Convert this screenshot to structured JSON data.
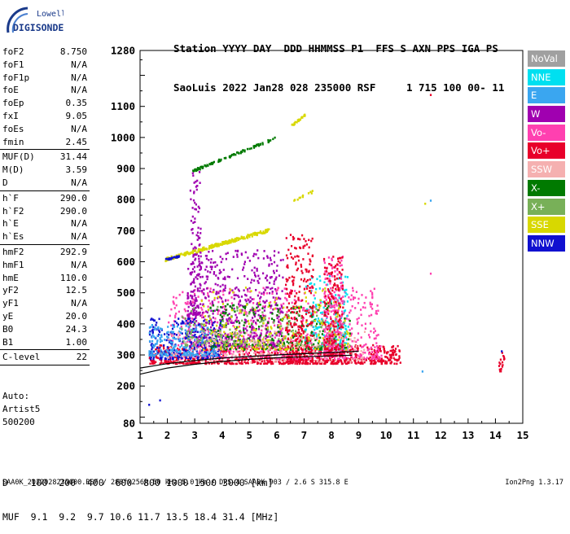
{
  "logo": {
    "line1": "Lowell",
    "line2": "DIGISONDE"
  },
  "header": {
    "line1": "Station YYYY DAY  DDD HHMMSS P1  FFS S AXN PPS IGA PS",
    "line2": "SaoLuis 2022 Jan28 028 235000 RSF     1 715 100 00- 11"
  },
  "params": [
    {
      "k": "foF2",
      "v": "8.750"
    },
    {
      "k": "foF1",
      "v": "N/A"
    },
    {
      "k": "foF1p",
      "v": "N/A"
    },
    {
      "k": "foE",
      "v": "N/A"
    },
    {
      "k": "foEp",
      "v": "0.35"
    },
    {
      "k": "fxI",
      "v": "9.05"
    },
    {
      "k": "foEs",
      "v": "N/A"
    },
    {
      "k": "fmin",
      "v": "2.45"
    },
    {
      "sep": true
    },
    {
      "k": "MUF(D)",
      "v": "31.44"
    },
    {
      "k": "M(D)",
      "v": "3.59"
    },
    {
      "k": "D",
      "v": "N/A"
    },
    {
      "sep": true
    },
    {
      "k": "h`F",
      "v": "290.0"
    },
    {
      "k": "h`F2",
      "v": "290.0"
    },
    {
      "k": "h`E",
      "v": "N/A"
    },
    {
      "k": "h`Es",
      "v": "N/A"
    },
    {
      "sep": true
    },
    {
      "k": "hmF2",
      "v": "292.9"
    },
    {
      "k": "hmF1",
      "v": "N/A"
    },
    {
      "k": "hmE",
      "v": "110.0"
    },
    {
      "k": "yF2",
      "v": "12.5"
    },
    {
      "k": "yF1",
      "v": "N/A"
    },
    {
      "k": "yE",
      "v": "20.0"
    },
    {
      "k": "B0",
      "v": "24.3"
    },
    {
      "k": "B1",
      "v": "1.00"
    },
    {
      "sep": true
    },
    {
      "k": "C-level",
      "v": "22"
    },
    {
      "sep": true
    }
  ],
  "auto": [
    "Auto:",
    "Artist5",
    "500200"
  ],
  "legend": [
    {
      "label": "NoVal",
      "color": "#a0a0a0"
    },
    {
      "label": "NNE",
      "color": "#00e0f0"
    },
    {
      "label": "E",
      "color": "#3aa6f0"
    },
    {
      "label": "W",
      "color": "#a000b0"
    },
    {
      "label": "Vo-",
      "color": "#ff40b0"
    },
    {
      "label": "Vo+",
      "color": "#e8002a"
    },
    {
      "label": "SSW",
      "color": "#f5b0b0"
    },
    {
      "label": "X-",
      "color": "#007a00"
    },
    {
      "label": "X+",
      "color": "#78b058"
    },
    {
      "label": "SSE",
      "color": "#d8d800"
    },
    {
      "label": "NNW",
      "color": "#1010d0"
    }
  ],
  "footer": {
    "d_line": "D    100  200  400  600  800 1000 1500 3000 [km]",
    "muf_line": "MUF  9.1  9.2  9.7 10.6 11.7 13.5 18.4 31.4 [MHz]",
    "file_line": "SAA0K_2022028235000.RSF / 280fx256h 50 kHz 5.0 km / DPS-4 SAA0K 903 / 2.6 S 315.8 E",
    "version": "Ion2Png 1.3.17"
  },
  "chart_data": {
    "type": "scatter",
    "xlim": [
      1,
      15
    ],
    "ylim": [
      80,
      1280
    ],
    "x_ticks": [
      "1",
      "2",
      "3",
      "4",
      "5",
      "6",
      "7",
      "8",
      "9",
      "10",
      "11",
      "12",
      "13",
      "14",
      "15"
    ],
    "y_ticks": [
      "80",
      "200",
      "300",
      "400",
      "500",
      "600",
      "700",
      "800",
      "900",
      "1000",
      "1100",
      "1280"
    ],
    "grid": false,
    "traces": [
      {
        "name": "profile",
        "color": "#000000",
        "points": [
          [
            1.0,
            238
          ],
          [
            2,
            258
          ],
          [
            3,
            270
          ],
          [
            4,
            279
          ],
          [
            5,
            286
          ],
          [
            6,
            291
          ],
          [
            7,
            294
          ],
          [
            8,
            297
          ],
          [
            8.75,
            299
          ]
        ]
      },
      {
        "name": "virtual-height",
        "color": "#000000",
        "points": [
          [
            1.0,
            258
          ],
          [
            2,
            272
          ],
          [
            3,
            282
          ],
          [
            4,
            290
          ],
          [
            5,
            295
          ],
          [
            6,
            300
          ],
          [
            7,
            304
          ],
          [
            8,
            308
          ],
          [
            9.0,
            312
          ]
        ]
      }
    ],
    "echo_regions": [
      {
        "color": "#e8002a",
        "xr": [
          1.3,
          10.5
        ],
        "yr": [
          275,
          335
        ],
        "n": 900
      },
      {
        "color": "#ff40b0",
        "xr": [
          2.0,
          9.8
        ],
        "yr": [
          290,
          520
        ],
        "n": 700
      },
      {
        "color": "#a000b0",
        "xr": [
          2.7,
          6.2
        ],
        "yr": [
          330,
          640
        ],
        "n": 600
      },
      {
        "color": "#a000b0",
        "xr": [
          2.8,
          3.2
        ],
        "yr": [
          430,
          900
        ],
        "n": 120
      },
      {
        "color": "#1010d0",
        "xr": [
          1.3,
          4.0
        ],
        "yr": [
          290,
          420
        ],
        "n": 260
      },
      {
        "color": "#3aa6f0",
        "xr": [
          1.3,
          3.8
        ],
        "yr": [
          300,
          400
        ],
        "n": 220
      },
      {
        "color": "#00e0f0",
        "xr": [
          7.0,
          8.6
        ],
        "yr": [
          320,
          560
        ],
        "n": 160
      },
      {
        "color": "#007a00",
        "xr": [
          3.5,
          8.7
        ],
        "yr": [
          320,
          470
        ],
        "n": 260
      },
      {
        "color": "#78b058",
        "xr": [
          2.5,
          8.5
        ],
        "yr": [
          330,
          460
        ],
        "n": 220
      },
      {
        "color": "#d8d800",
        "xr": [
          3.2,
          8.7
        ],
        "yr": [
          320,
          520
        ],
        "n": 200
      },
      {
        "color": "#f5b0b0",
        "xr": [
          2.0,
          9.2
        ],
        "yr": [
          280,
          380
        ],
        "n": 220
      },
      {
        "color": "#e8002a",
        "xr": [
          6.3,
          7.3
        ],
        "yr": [
          280,
          690
        ],
        "n": 260
      },
      {
        "color": "#ff40b0",
        "xr": [
          7.7,
          8.4
        ],
        "yr": [
          300,
          620
        ],
        "n": 220
      },
      {
        "color": "#e8002a",
        "xr": [
          7.7,
          8.4
        ],
        "yr": [
          300,
          620
        ],
        "n": 160
      },
      {
        "color": "#e8002a",
        "xr": [
          14.1,
          14.3
        ],
        "yr": [
          250,
          330
        ],
        "n": 18
      }
    ],
    "echo_lines": [
      {
        "color": "#d8d800",
        "x": [
          1.9,
          5.7
        ],
        "y": [
          610,
          705
        ],
        "n": 220,
        "jitter": 10
      },
      {
        "color": "#1010d0",
        "x": [
          1.9,
          2.4
        ],
        "y": [
          610,
          620
        ],
        "n": 30,
        "jitter": 5
      },
      {
        "color": "#007a00",
        "x": [
          2.9,
          5.9
        ],
        "y": [
          895,
          1000
        ],
        "n": 90,
        "jitter": 8
      },
      {
        "color": "#d8d800",
        "x": [
          6.5,
          7.0
        ],
        "y": [
          1040,
          1075
        ],
        "n": 30,
        "jitter": 6
      },
      {
        "color": "#d8d800",
        "x": [
          6.6,
          7.3
        ],
        "y": [
          800,
          830
        ],
        "n": 14,
        "jitter": 10
      }
    ],
    "isolated_points": [
      {
        "color": "#1010d0",
        "x": 1.3,
        "y": 143
      },
      {
        "color": "#1010d0",
        "x": 1.7,
        "y": 157
      },
      {
        "color": "#e8002a",
        "x": 11.6,
        "y": 1140
      },
      {
        "color": "#3aa6f0",
        "x": 11.6,
        "y": 800
      },
      {
        "color": "#3aa6f0",
        "x": 11.3,
        "y": 250
      },
      {
        "color": "#d8d800",
        "x": 11.4,
        "y": 790
      },
      {
        "color": "#ff40b0",
        "x": 11.6,
        "y": 565
      },
      {
        "color": "#1010d0",
        "x": 14.2,
        "y": 315
      }
    ]
  }
}
